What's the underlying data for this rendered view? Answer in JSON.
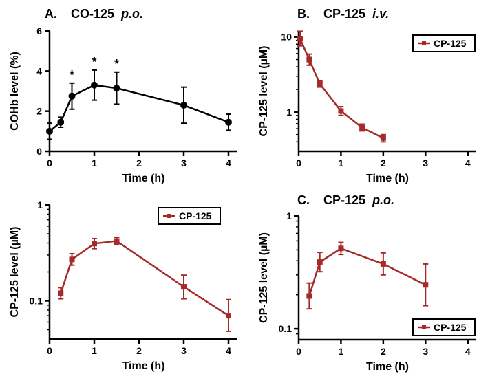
{
  "divider_color": "#888888",
  "panelA_top": {
    "title_letter": "A.",
    "title_main": "CO-125",
    "title_italic": "p.o.",
    "title_fontsize": 18,
    "type": "line-scatter",
    "series_label": null,
    "marker_color": "#000000",
    "line_color": "#000000",
    "line_width": 2.5,
    "marker_size": 5,
    "xlabel": "Time (h)",
    "ylabel": "COHb level (%)",
    "label_fontsize": 16,
    "xlim": [
      0,
      4.2
    ],
    "ylim": [
      0,
      6
    ],
    "xticks": [
      0,
      1,
      2,
      3,
      4
    ],
    "yticks": [
      0,
      2,
      4,
      6
    ],
    "tick_fontsize": 14,
    "data": [
      {
        "x": 0,
        "y": 1.0,
        "err": 0.4
      },
      {
        "x": 0.25,
        "y": 1.45,
        "err": 0.25
      },
      {
        "x": 0.5,
        "y": 2.75,
        "err": 0.65,
        "star": true
      },
      {
        "x": 1.0,
        "y": 3.3,
        "err": 0.75,
        "star": true
      },
      {
        "x": 1.5,
        "y": 3.15,
        "err": 0.8,
        "star": true
      },
      {
        "x": 3.0,
        "y": 2.3,
        "err": 0.9
      },
      {
        "x": 4.0,
        "y": 1.45,
        "err": 0.4
      }
    ],
    "background_color": "#ffffff",
    "axis_color": "#000000"
  },
  "panelA_bottom": {
    "type": "line-scatter-logy",
    "series_label": "CP-125",
    "marker_color": "#a52a2a",
    "line_color": "#a52a2a",
    "line_width": 2.5,
    "marker_shape": "square",
    "marker_size": 4,
    "xlabel": "Time (h)",
    "ylabel": "CP-125 level (µM)",
    "label_fontsize": 16,
    "xlim": [
      0,
      4.2
    ],
    "ylim_log": [
      0.04,
      1
    ],
    "xticks": [
      0,
      1,
      2,
      3,
      4
    ],
    "ytick_labels": [
      "0.1",
      "1"
    ],
    "ytick_vals": [
      0.1,
      1
    ],
    "yminor": [
      0.04,
      0.05,
      0.06,
      0.07,
      0.08,
      0.09,
      0.2,
      0.3,
      0.4,
      0.5,
      0.6,
      0.7,
      0.8,
      0.9
    ],
    "data": [
      {
        "x": 0.25,
        "y": 0.12,
        "err_lo": 0.105,
        "err_hi": 0.137
      },
      {
        "x": 0.5,
        "y": 0.27,
        "err_lo": 0.235,
        "err_hi": 0.31
      },
      {
        "x": 1.0,
        "y": 0.395,
        "err_lo": 0.35,
        "err_hi": 0.445
      },
      {
        "x": 1.5,
        "y": 0.42,
        "err_lo": 0.39,
        "err_hi": 0.46
      },
      {
        "x": 3.0,
        "y": 0.14,
        "err_lo": 0.105,
        "err_hi": 0.185
      },
      {
        "x": 4.0,
        "y": 0.07,
        "err_lo": 0.048,
        "err_hi": 0.103
      }
    ],
    "legend_pos": "top-right-inset"
  },
  "panelB": {
    "title_letter": "B.",
    "title_main": "CP-125",
    "title_italic": "i.v.",
    "type": "line-scatter-logy",
    "series_label": "CP-125",
    "marker_color": "#a52a2a",
    "line_color": "#a52a2a",
    "line_width": 2.5,
    "marker_shape": "square",
    "marker_size": 4,
    "xlabel": "Time (h)",
    "ylabel": "CP-125 level (µM)",
    "xlim": [
      0,
      4.2
    ],
    "ylim_log": [
      0.3,
      12
    ],
    "xticks": [
      0,
      1,
      2,
      3,
      4
    ],
    "ytick_labels": [
      "1",
      "10"
    ],
    "ytick_vals": [
      1,
      10
    ],
    "yminor": [
      0.3,
      0.4,
      0.5,
      0.6,
      0.7,
      0.8,
      0.9,
      2,
      3,
      4,
      5,
      6,
      7,
      8,
      9
    ],
    "data": [
      {
        "x": 0.033,
        "y": 9.5,
        "err_lo": 7.6,
        "err_hi": 11.9
      },
      {
        "x": 0.25,
        "y": 5.0,
        "err_lo": 4.2,
        "err_hi": 5.9
      },
      {
        "x": 0.5,
        "y": 2.37,
        "err_lo": 2.15,
        "err_hi": 2.6
      },
      {
        "x": 1.0,
        "y": 1.03,
        "err_lo": 0.9,
        "err_hi": 1.18
      },
      {
        "x": 1.5,
        "y": 0.62,
        "err_lo": 0.56,
        "err_hi": 0.69
      },
      {
        "x": 2.0,
        "y": 0.45,
        "err_lo": 0.4,
        "err_hi": 0.5
      }
    ],
    "legend_pos": "top-right"
  },
  "panelC": {
    "title_letter": "C.",
    "title_main": "CP-125",
    "title_italic": "p.o.",
    "type": "line-scatter-logy",
    "series_label": "CP-125",
    "marker_color": "#a52a2a",
    "line_color": "#a52a2a",
    "line_width": 2.5,
    "marker_shape": "square",
    "marker_size": 4,
    "xlabel": "Time (h)",
    "ylabel": "CP-125 level (µM)",
    "xlim": [
      0,
      4.2
    ],
    "ylim_log": [
      0.08,
      1
    ],
    "xticks": [
      0,
      1,
      2,
      3,
      4
    ],
    "ytick_labels": [
      "0.1",
      "1"
    ],
    "ytick_vals": [
      0.1,
      1
    ],
    "yminor": [
      0.08,
      0.09,
      0.2,
      0.3,
      0.4,
      0.5,
      0.6,
      0.7,
      0.8,
      0.9
    ],
    "data": [
      {
        "x": 0.25,
        "y": 0.195,
        "err_lo": 0.15,
        "err_hi": 0.254
      },
      {
        "x": 0.5,
        "y": 0.39,
        "err_lo": 0.32,
        "err_hi": 0.475
      },
      {
        "x": 1.0,
        "y": 0.515,
        "err_lo": 0.455,
        "err_hi": 0.582
      },
      {
        "x": 2.0,
        "y": 0.375,
        "err_lo": 0.3,
        "err_hi": 0.47
      },
      {
        "x": 3.0,
        "y": 0.245,
        "err_lo": 0.16,
        "err_hi": 0.375
      }
    ],
    "legend_pos": "bottom-right"
  }
}
